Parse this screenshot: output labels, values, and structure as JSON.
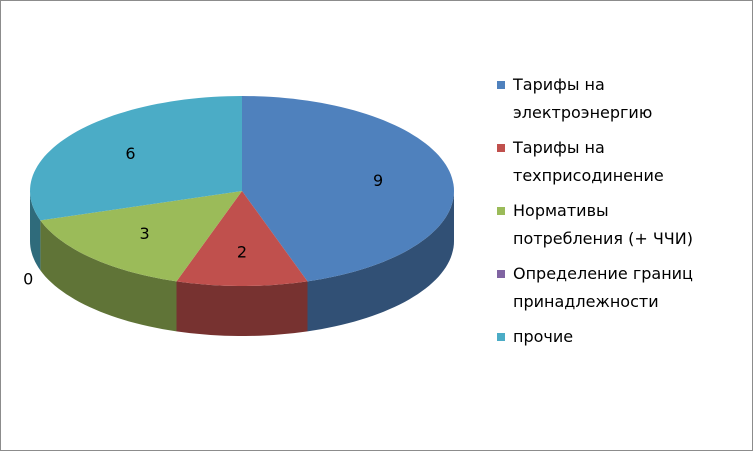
{
  "chart_data": {
    "type": "pie3d",
    "categories": [
      "Тарифы на электроэнергию",
      "Тарифы на техприсодинение",
      "Нормативы потребления (+ ЧЧИ)",
      "Определение границ принадлежности",
      "прочие"
    ],
    "values": [
      9,
      2,
      3,
      0,
      6
    ],
    "colors": [
      "#4f81bd",
      "#c0504d",
      "#9bbb59",
      "#8064a2",
      "#4bacc6"
    ],
    "legend": "right"
  }
}
